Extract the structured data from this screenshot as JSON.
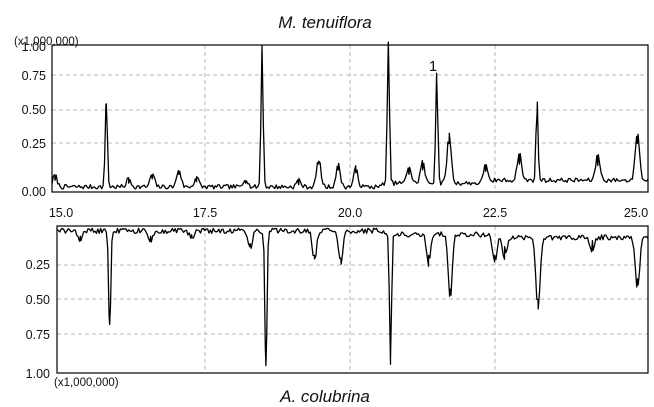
{
  "chart_data": [
    {
      "type": "line",
      "title": "M. tenuiflora",
      "scale_label": "(x1,000,000)",
      "xlim": [
        14.9,
        25.0
      ],
      "ylim": [
        0,
        1.0
      ],
      "x_ticks": [
        "15.0",
        "17.5",
        "20.0",
        "22.5",
        "25.0"
      ],
      "y_ticks": [
        "0.00",
        "0.25",
        "0.50",
        "0.75",
        "1.00"
      ],
      "annotations": [
        {
          "text": "1",
          "x": 21.4,
          "y": 0.83
        }
      ],
      "grid": true,
      "series": [
        {
          "peaks": [
            {
              "x": 14.95,
              "y": 0.08
            },
            {
              "x": 15.82,
              "y": 0.6
            },
            {
              "x": 16.2,
              "y": 0.06
            },
            {
              "x": 16.6,
              "y": 0.09
            },
            {
              "x": 17.05,
              "y": 0.12
            },
            {
              "x": 17.35,
              "y": 0.07
            },
            {
              "x": 18.18,
              "y": 0.06
            },
            {
              "x": 18.46,
              "y": 0.96
            },
            {
              "x": 19.08,
              "y": 0.05
            },
            {
              "x": 19.42,
              "y": 0.19
            },
            {
              "x": 19.75,
              "y": 0.15
            },
            {
              "x": 20.05,
              "y": 0.13
            },
            {
              "x": 20.6,
              "y": 1.0
            },
            {
              "x": 20.95,
              "y": 0.12
            },
            {
              "x": 21.18,
              "y": 0.15
            },
            {
              "x": 21.42,
              "y": 0.76
            },
            {
              "x": 21.63,
              "y": 0.33
            },
            {
              "x": 22.25,
              "y": 0.14
            },
            {
              "x": 22.82,
              "y": 0.19
            },
            {
              "x": 23.12,
              "y": 0.54
            },
            {
              "x": 24.15,
              "y": 0.18
            },
            {
              "x": 24.82,
              "y": 0.33
            }
          ]
        }
      ]
    },
    {
      "type": "line",
      "title": "A. colubrina",
      "scale_label": "(x1,000,000)",
      "y_direction": "inverted",
      "xlim": [
        14.9,
        25.0
      ],
      "ylim": [
        0,
        1.0
      ],
      "y_ticks": [
        "0.25",
        "0.50",
        "0.75",
        "1.00"
      ],
      "grid": true,
      "series": [
        {
          "peaks": [
            {
              "x": 15.3,
              "y": 0.07
            },
            {
              "x": 15.8,
              "y": 0.67
            },
            {
              "x": 16.5,
              "y": 0.07
            },
            {
              "x": 17.2,
              "y": 0.06
            },
            {
              "x": 18.2,
              "y": 0.12
            },
            {
              "x": 18.47,
              "y": 0.95
            },
            {
              "x": 19.3,
              "y": 0.2
            },
            {
              "x": 19.75,
              "y": 0.22
            },
            {
              "x": 20.6,
              "y": 0.9
            },
            {
              "x": 21.25,
              "y": 0.2
            },
            {
              "x": 21.62,
              "y": 0.43
            },
            {
              "x": 22.38,
              "y": 0.2
            },
            {
              "x": 22.55,
              "y": 0.14
            },
            {
              "x": 23.12,
              "y": 0.5
            },
            {
              "x": 24.05,
              "y": 0.1
            },
            {
              "x": 24.82,
              "y": 0.36
            }
          ]
        }
      ]
    }
  ]
}
